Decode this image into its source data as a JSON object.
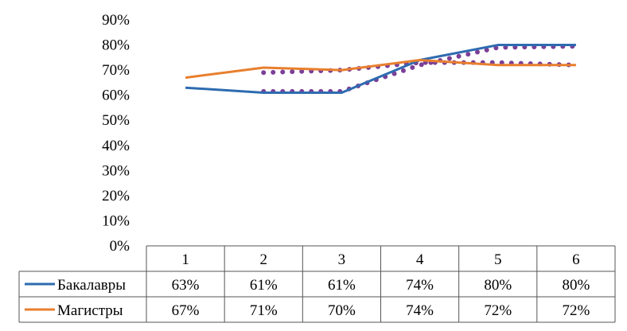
{
  "chart_data": {
    "type": "line",
    "title": "",
    "xlabel": "",
    "ylabel": "",
    "categories": [
      "1",
      "2",
      "3",
      "4",
      "5",
      "6"
    ],
    "ylim": [
      0,
      90
    ],
    "y_ticks": [
      "0%",
      "10%",
      "20%",
      "30%",
      "40%",
      "50%",
      "60%",
      "70%",
      "80%",
      "90%"
    ],
    "series": [
      {
        "name": "Бакалавры",
        "color": "#2e6bb0",
        "style": "solid",
        "values": [
          63,
          61,
          61,
          74,
          80,
          80
        ],
        "labels": [
          "63%",
          "61%",
          "61%",
          "74%",
          "80%",
          "80%"
        ]
      },
      {
        "name": "Магистры",
        "color": "#e87f2e",
        "style": "solid",
        "values": [
          67,
          71,
          70,
          74,
          72,
          72
        ],
        "labels": [
          "67%",
          "71%",
          "70%",
          "74%",
          "72%",
          "72%"
        ]
      }
    ],
    "trendlines": [
      {
        "color": "#7b3f98",
        "style": "dotted",
        "values": [
          null,
          61.5,
          61.5,
          72,
          79,
          79.5
        ]
      },
      {
        "color": "#7b3f98",
        "style": "dotted",
        "values": [
          null,
          69,
          70,
          73,
          73,
          72
        ]
      }
    ],
    "grid": false,
    "legend": "data-table"
  }
}
